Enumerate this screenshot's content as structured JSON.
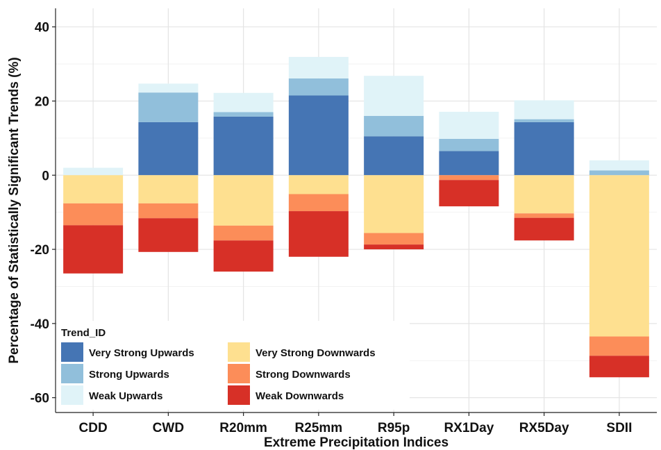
{
  "chart_data": {
    "type": "bar",
    "stacked": true,
    "title": "",
    "xlabel": "Extreme Precipitation Indices",
    "ylabel": "Percentage of Statistically Significant Trends (%)",
    "ylim": [
      -64,
      45
    ],
    "yticks": [
      -60,
      -40,
      -20,
      0,
      20,
      40
    ],
    "ytick_labels": [
      "-60",
      "-40",
      "-20",
      "0",
      "20",
      "40"
    ],
    "grid": true,
    "legend": {
      "title": "Trend_ID",
      "position": "bottom-left"
    },
    "categories": [
      "CDD",
      "CWD",
      "R20mm",
      "R25mm",
      "R95p",
      "RX1Day",
      "RX5Day",
      "SDII"
    ],
    "series": [
      {
        "name": "Very Strong Upwards",
        "color": "#4575b4",
        "values": [
          0,
          14.3,
          15.8,
          21.5,
          10.5,
          6.5,
          14.3,
          0
        ]
      },
      {
        "name": "Strong Upwards",
        "color": "#91bfdb",
        "values": [
          0,
          8,
          1.2,
          4.6,
          5.5,
          3.3,
          0.8,
          1.3
        ]
      },
      {
        "name": "Weak Upwards",
        "color": "#e0f3f8",
        "values": [
          2,
          2.4,
          5.2,
          5.8,
          10.8,
          7.3,
          5.1,
          2.7
        ]
      },
      {
        "name": "Very Strong Downwards",
        "color": "#fee090",
        "values": [
          -7.6,
          -7.6,
          -13.6,
          -5.1,
          -15.6,
          0,
          -10.3,
          -43.5
        ]
      },
      {
        "name": "Strong Downwards",
        "color": "#fc8d59",
        "values": [
          -5.9,
          -4,
          -4,
          -4.6,
          -3.1,
          -1.3,
          -1.2,
          -5.2
        ]
      },
      {
        "name": "Weak Downwards",
        "color": "#d73027",
        "values": [
          -13,
          -9.1,
          -8.4,
          -12.3,
          -1.3,
          -7.1,
          -6.1,
          -5.8
        ]
      }
    ]
  }
}
